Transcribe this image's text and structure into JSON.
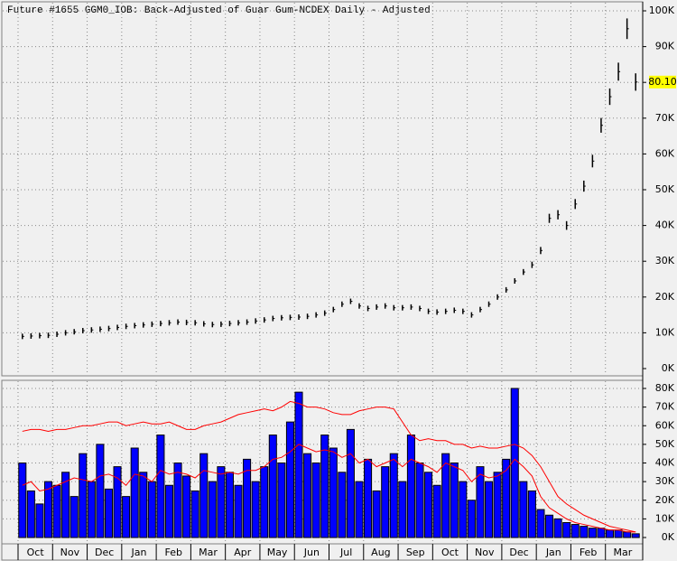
{
  "chart_data": [
    {
      "type": "ohlc",
      "title": "Future #1655 GGM0_IOB: Back-Adjusted of Guar Gum-NCDEX Daily -  Adjusted",
      "color": "#000000",
      "ylim": [
        0,
        100000
      ],
      "yticks": [
        {
          "value": 0,
          "label": "0K"
        },
        {
          "value": 10000,
          "label": "10K"
        },
        {
          "value": 20000,
          "label": "20K"
        },
        {
          "value": 30000,
          "label": "30K"
        },
        {
          "value": 40000,
          "label": "40K"
        },
        {
          "value": 50000,
          "label": "50K"
        },
        {
          "value": 60000,
          "label": "60K"
        },
        {
          "value": 70000,
          "label": "70K"
        },
        {
          "value": 80000,
          "label": "80K"
        },
        {
          "value": 90000,
          "label": "90K"
        },
        {
          "value": 100000,
          "label": "100K"
        }
      ],
      "last_price": {
        "value": 80100,
        "label": "80.10"
      },
      "grid": true,
      "values": [
        9000,
        9100,
        9200,
        9300,
        9600,
        10000,
        10300,
        10600,
        10800,
        11000,
        11200,
        11500,
        11800,
        12000,
        12200,
        12400,
        12600,
        12800,
        13000,
        12900,
        12800,
        12500,
        12300,
        12400,
        12600,
        12800,
        13000,
        13300,
        13600,
        14000,
        14200,
        14300,
        14400,
        14600,
        15000,
        15500,
        16500,
        18000,
        18800,
        17500,
        16800,
        17200,
        17500,
        17000,
        17000,
        17200,
        16800,
        16000,
        15800,
        16000,
        16300,
        16000,
        15000,
        16500,
        18000,
        20000,
        22000,
        24500,
        27000,
        29000,
        33000,
        42000,
        43000,
        40000,
        46000,
        51000,
        58000,
        68000,
        76000,
        83000,
        95000,
        80100
      ]
    },
    {
      "type": "volume",
      "ylim": [
        0,
        80000
      ],
      "yticks": [
        {
          "value": 0,
          "label": "0K"
        },
        {
          "value": 10000,
          "label": "10K"
        },
        {
          "value": 20000,
          "label": "20K"
        },
        {
          "value": 30000,
          "label": "30K"
        },
        {
          "value": 40000,
          "label": "40K"
        },
        {
          "value": 50000,
          "label": "50K"
        },
        {
          "value": 60000,
          "label": "60K"
        },
        {
          "value": 70000,
          "label": "70K"
        },
        {
          "value": 80000,
          "label": "80K"
        }
      ],
      "x_labels": [
        "Oct",
        "Nov",
        "Dec",
        "Jan",
        "Feb",
        "Mar",
        "Apr",
        "May",
        "Jun",
        "Jul",
        "Aug",
        "Sep",
        "Oct",
        "Nov",
        "Dec",
        "Jan",
        "Feb",
        "Mar"
      ],
      "grid": true,
      "series": [
        {
          "type": "bar",
          "color": "#0000ff",
          "values": [
            40000,
            25000,
            18000,
            30000,
            28000,
            35000,
            22000,
            45000,
            30000,
            50000,
            26000,
            38000,
            22000,
            48000,
            35000,
            30000,
            55000,
            28000,
            40000,
            33000,
            25000,
            45000,
            30000,
            38000,
            35000,
            28000,
            42000,
            30000,
            38000,
            55000,
            40000,
            62000,
            78000,
            45000,
            40000,
            55000,
            48000,
            35000,
            58000,
            30000,
            42000,
            25000,
            38000,
            45000,
            30000,
            55000,
            40000,
            35000,
            28000,
            45000,
            40000,
            30000,
            20000,
            38000,
            30000,
            35000,
            42000,
            80000,
            30000,
            25000,
            15000,
            12000,
            10000,
            8000,
            7000,
            6000,
            5000,
            5000,
            4000,
            4000,
            3000,
            2000
          ]
        },
        {
          "type": "line",
          "color": "#ff0000",
          "values": [
            57000,
            58000,
            58000,
            57000,
            58000,
            58000,
            59000,
            60000,
            60000,
            61000,
            62000,
            62000,
            60000,
            61000,
            62000,
            61000,
            61000,
            62000,
            60000,
            58000,
            58000,
            60000,
            61000,
            62000,
            64000,
            66000,
            67000,
            68000,
            69000,
            68000,
            70000,
            73000,
            72000,
            70000,
            70000,
            69000,
            67000,
            66000,
            66000,
            68000,
            69000,
            70000,
            70000,
            69000,
            62000,
            55000,
            52000,
            53000,
            52000,
            52000,
            50000,
            50000,
            48000,
            49000,
            48000,
            48000,
            49000,
            50000,
            48000,
            44000,
            38000,
            30000,
            22000,
            18000,
            15000,
            12000,
            10000,
            8000,
            6000,
            5000,
            4000,
            3000
          ]
        },
        {
          "type": "line",
          "color": "#ff0000",
          "values": [
            28000,
            30000,
            25000,
            26000,
            28000,
            30000,
            32000,
            31000,
            30000,
            33000,
            34000,
            32000,
            28000,
            34000,
            33000,
            30000,
            36000,
            34000,
            35000,
            34000,
            32000,
            36000,
            35000,
            34000,
            35000,
            34000,
            36000,
            36000,
            38000,
            42000,
            43000,
            46000,
            50000,
            48000,
            46000,
            47000,
            46000,
            43000,
            45000,
            40000,
            42000,
            38000,
            40000,
            42000,
            38000,
            42000,
            40000,
            38000,
            35000,
            40000,
            38000,
            36000,
            30000,
            34000,
            32000,
            33000,
            36000,
            42000,
            38000,
            33000,
            22000,
            16000,
            13000,
            10000,
            8000,
            7000,
            6000,
            5000,
            4000,
            4000,
            3000,
            3000
          ]
        }
      ]
    }
  ]
}
